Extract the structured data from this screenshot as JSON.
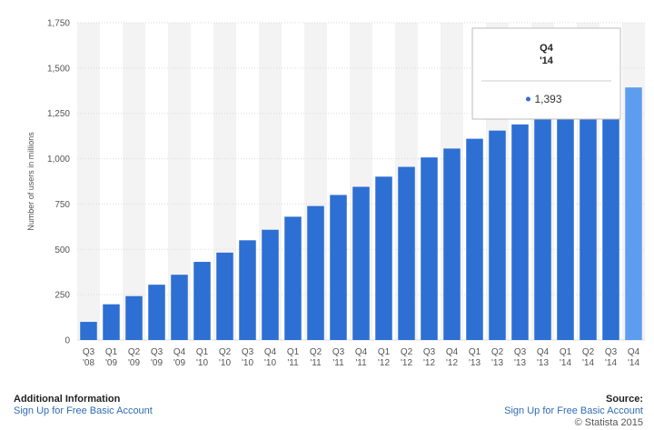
{
  "chart_data": {
    "type": "bar",
    "categories": [
      "Q3 '08",
      "Q1 '09",
      "Q2 '09",
      "Q3 '09",
      "Q4 '09",
      "Q1 '10",
      "Q2 '10",
      "Q3 '10",
      "Q4 '10",
      "Q1 '11",
      "Q2 '11",
      "Q3 '11",
      "Q4 '11",
      "Q1 '12",
      "Q2 '12",
      "Q3 '12",
      "Q4 '12",
      "Q1 '13",
      "Q2 '13",
      "Q3 '13",
      "Q4 '13",
      "Q1 '14",
      "Q2 '14",
      "Q3 '14",
      "Q4 '14"
    ],
    "values": [
      100,
      197,
      242,
      305,
      360,
      431,
      482,
      550,
      608,
      680,
      739,
      800,
      845,
      901,
      955,
      1007,
      1056,
      1110,
      1155,
      1189,
      1228,
      1276,
      1317,
      1350,
      1393
    ],
    "title": "",
    "xlabel": "",
    "ylabel": "Number of users in millions",
    "ylim": [
      0,
      1750
    ],
    "yticks": [
      0,
      250,
      500,
      750,
      "1,000",
      "1,250",
      "1,500",
      "1,750"
    ],
    "grid": true,
    "highlighted_index": 24,
    "tooltip": {
      "title_line1": "Q4",
      "title_line2": "'14",
      "value_label": "1,393"
    },
    "colors": {
      "bar": "#2d6fd2",
      "bar_highlight": "#5c9df0",
      "band": "#f3f3f3",
      "grid": "#dcdcdc"
    }
  },
  "footer": {
    "additional_title": "Additional Information",
    "additional_link": "Sign Up for Free Basic Account",
    "source_title": "Source:",
    "source_link": "Sign Up for Free Basic Account",
    "copyright": "© Statista 2015"
  }
}
